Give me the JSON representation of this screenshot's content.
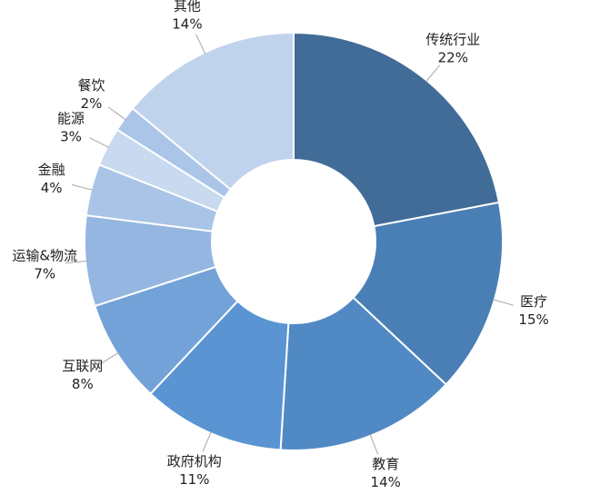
{
  "chart_data": {
    "type": "donut",
    "categories": [
      "传统行业",
      "医疗",
      "教育",
      "政府机构",
      "互联网",
      "运输&物流",
      "金融",
      "能源",
      "餐饮",
      "其他"
    ],
    "values": [
      22,
      15,
      14,
      11,
      8,
      7,
      4,
      3,
      2,
      14
    ],
    "value_labels": [
      "22%",
      "15%",
      "14%",
      "11%",
      "8%",
      "7%",
      "4%",
      "3%",
      "2%",
      "14%"
    ],
    "colors": [
      "#416c98",
      "#4a7fb5",
      "#5189c4",
      "#5a94d2",
      "#72a2d8",
      "#94b6e0",
      "#a9c4e7",
      "#c9d9ef",
      "#aac5e8",
      "#c0d3ec"
    ]
  }
}
